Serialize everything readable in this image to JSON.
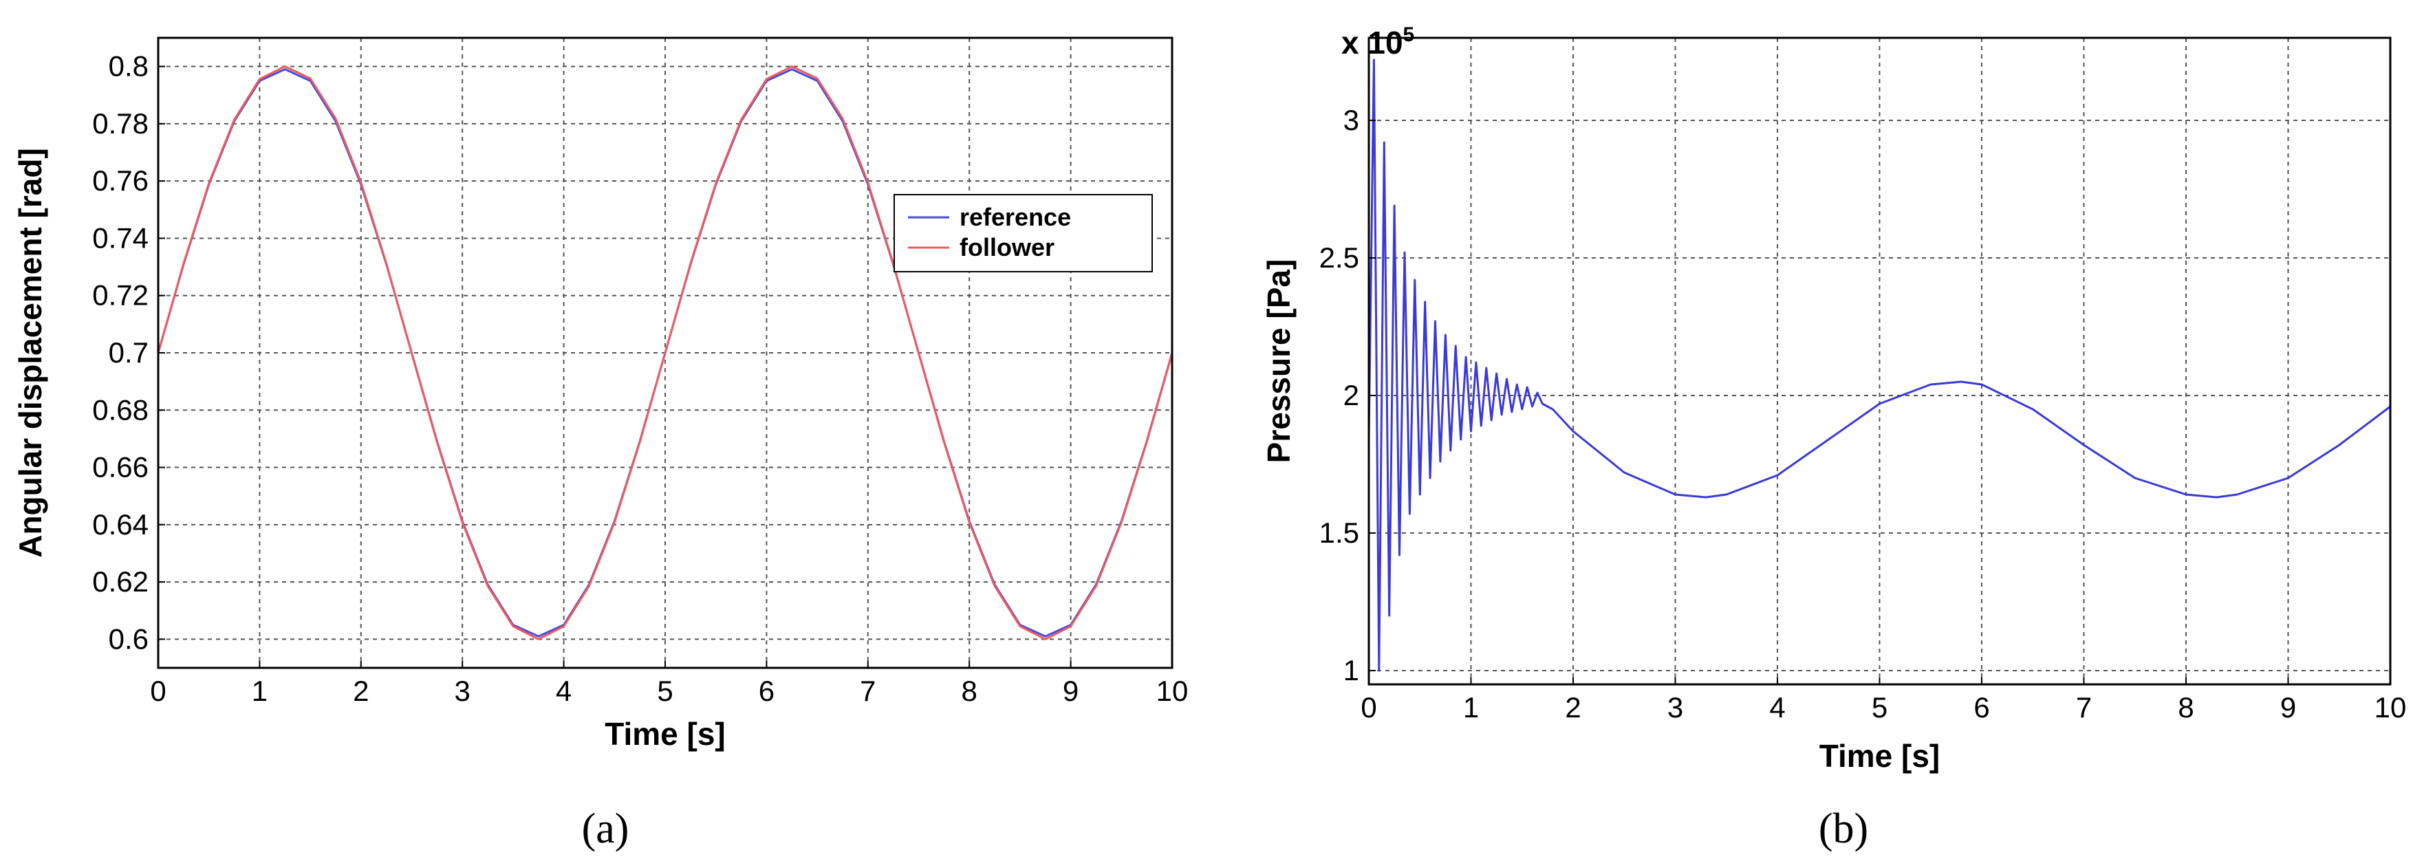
{
  "chart_data": [
    {
      "type": "line",
      "panel_label": "(a)",
      "xlabel": "Time [s]",
      "ylabel": "Angular displacement [rad]",
      "xlim": [
        0,
        10
      ],
      "ylim": [
        0.59,
        0.81
      ],
      "xticks": [
        0,
        1,
        2,
        3,
        4,
        5,
        6,
        7,
        8,
        9,
        10
      ],
      "yticks": [
        0.6,
        0.62,
        0.64,
        0.66,
        0.68,
        0.7,
        0.72,
        0.74,
        0.76,
        0.78,
        0.8
      ],
      "xtick_labels": [
        "0",
        "1",
        "2",
        "3",
        "4",
        "5",
        "6",
        "7",
        "8",
        "9",
        "10"
      ],
      "ytick_labels": [
        "0.6",
        "0.62",
        "0.64",
        "0.66",
        "0.68",
        "0.7",
        "0.72",
        "0.74",
        "0.76",
        "0.78",
        "0.8"
      ],
      "grid": true,
      "legend": "right",
      "series": [
        {
          "name": "reference",
          "color": "#4a4adf",
          "x": [
            0,
            0.25,
            0.5,
            0.75,
            1,
            1.25,
            1.5,
            1.75,
            2,
            2.25,
            2.5,
            2.75,
            3,
            3.25,
            3.5,
            3.75,
            4,
            4.25,
            4.5,
            4.75,
            5,
            5.25,
            5.5,
            5.75,
            6,
            6.25,
            6.5,
            6.75,
            7,
            7.25,
            7.5,
            7.75,
            8,
            8.25,
            8.5,
            8.75,
            9,
            9.25,
            9.5,
            9.75,
            10
          ],
          "y": [
            0.7,
            0.7309,
            0.7588,
            0.7809,
            0.795,
            0.799,
            0.795,
            0.7809,
            0.7588,
            0.7309,
            0.7,
            0.6691,
            0.6412,
            0.6191,
            0.605,
            0.601,
            0.605,
            0.6191,
            0.6412,
            0.6691,
            0.7,
            0.7309,
            0.7588,
            0.7809,
            0.795,
            0.799,
            0.795,
            0.7809,
            0.7588,
            0.7309,
            0.7,
            0.6691,
            0.6412,
            0.6191,
            0.605,
            0.601,
            0.605,
            0.6191,
            0.6412,
            0.6691,
            0.7
          ]
        },
        {
          "name": "follower",
          "color": "#ef5a5a",
          "x": [
            0,
            0.25,
            0.5,
            0.75,
            1,
            1.25,
            1.5,
            1.75,
            2,
            2.25,
            2.5,
            2.75,
            3,
            3.25,
            3.5,
            3.75,
            4,
            4.25,
            4.5,
            4.75,
            5,
            5.25,
            5.5,
            5.75,
            6,
            6.25,
            6.5,
            6.75,
            7,
            7.25,
            7.5,
            7.75,
            8,
            8.25,
            8.5,
            8.75,
            9,
            9.25,
            9.5,
            9.75,
            10
          ],
          "y": [
            0.7,
            0.7312,
            0.7592,
            0.7814,
            0.7956,
            0.8,
            0.7958,
            0.7818,
            0.7595,
            0.7312,
            0.6998,
            0.6688,
            0.6408,
            0.6186,
            0.6045,
            0.6,
            0.6045,
            0.6186,
            0.6408,
            0.6688,
            0.7,
            0.7312,
            0.7592,
            0.7814,
            0.7956,
            0.8,
            0.7958,
            0.7818,
            0.7595,
            0.7312,
            0.6998,
            0.6688,
            0.6408,
            0.6186,
            0.6045,
            0.6,
            0.6045,
            0.6186,
            0.6408,
            0.6688,
            0.6998
          ]
        }
      ]
    },
    {
      "type": "line",
      "panel_label": "(b)",
      "xlabel": "Time [s]",
      "ylabel": "Pressure [Pa]",
      "y_multiplier_base": "x 10",
      "y_multiplier_exp": "5",
      "xlim": [
        0,
        10
      ],
      "ylim": [
        0.95,
        3.3
      ],
      "xticks": [
        0,
        1,
        2,
        3,
        4,
        5,
        6,
        7,
        8,
        9,
        10
      ],
      "yticks": [
        1,
        1.5,
        2,
        2.5,
        3
      ],
      "xtick_labels": [
        "0",
        "1",
        "2",
        "3",
        "4",
        "5",
        "6",
        "7",
        "8",
        "9",
        "10"
      ],
      "ytick_labels": [
        "1",
        "1.5",
        "2",
        "2.5",
        "3"
      ],
      "grid": true,
      "series": [
        {
          "color": "#3a3ad8",
          "x": [
            0,
            0.05,
            0.1,
            0.15,
            0.2,
            0.25,
            0.3,
            0.35,
            0.4,
            0.45,
            0.5,
            0.55,
            0.6,
            0.65,
            0.7,
            0.75,
            0.8,
            0.85,
            0.9,
            0.95,
            1.0,
            1.05,
            1.1,
            1.15,
            1.2,
            1.25,
            1.3,
            1.35,
            1.4,
            1.45,
            1.5,
            1.55,
            1.6,
            1.65,
            1.7,
            1.8,
            1.9,
            2.0,
            2.5,
            3.0,
            3.3,
            3.5,
            4.0,
            4.5,
            5.0,
            5.5,
            5.8,
            6.0,
            6.5,
            7.0,
            7.5,
            8.0,
            8.3,
            8.5,
            9.0,
            9.5,
            10.0
          ],
          "y": [
            1.85,
            3.22,
            1.0,
            2.92,
            1.2,
            2.69,
            1.42,
            2.52,
            1.57,
            2.42,
            1.64,
            2.34,
            1.7,
            2.27,
            1.76,
            2.22,
            1.8,
            2.18,
            1.84,
            2.14,
            1.87,
            2.12,
            1.89,
            2.1,
            1.91,
            2.08,
            1.93,
            2.06,
            1.94,
            2.04,
            1.95,
            2.03,
            1.96,
            2.01,
            1.97,
            1.95,
            1.91,
            1.87,
            1.72,
            1.64,
            1.63,
            1.64,
            1.71,
            1.84,
            1.97,
            2.04,
            2.05,
            2.04,
            1.95,
            1.82,
            1.7,
            1.64,
            1.63,
            1.64,
            1.7,
            1.82,
            1.96
          ]
        }
      ]
    }
  ]
}
